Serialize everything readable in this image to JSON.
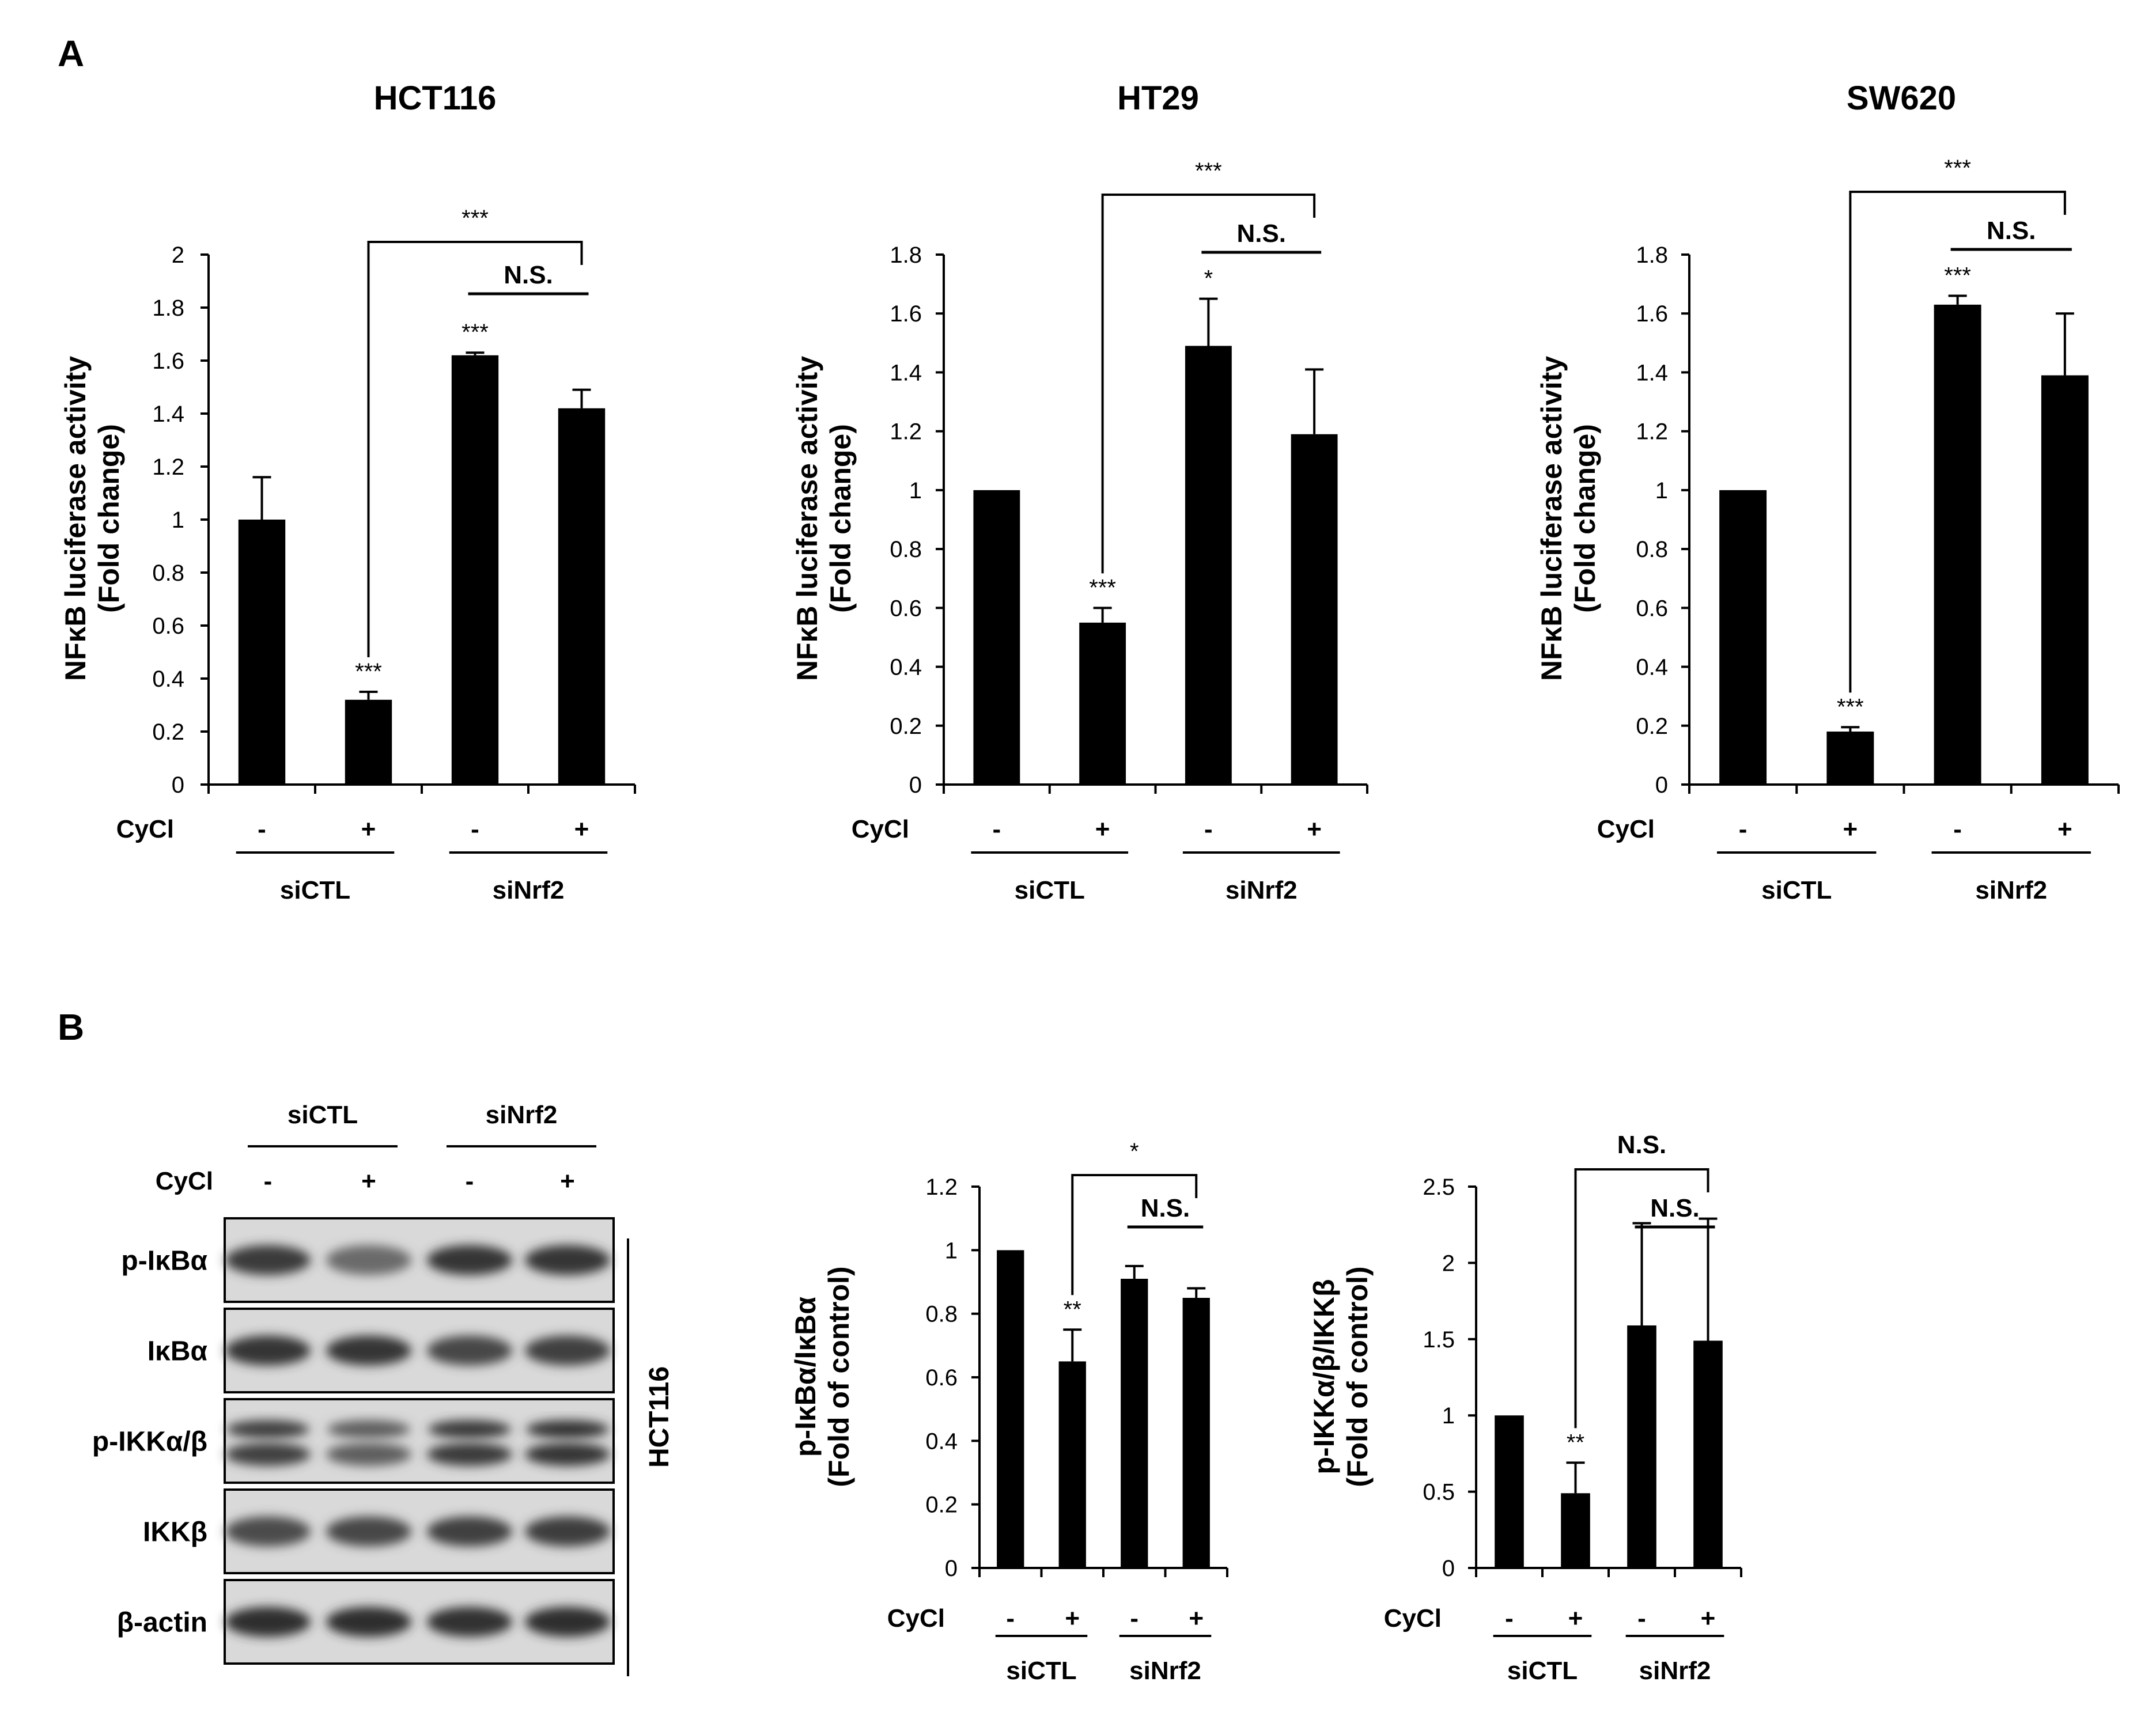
{
  "figure": {
    "panel_a_letter": "A",
    "panel_b_letter": "B"
  },
  "chart_data": [
    {
      "type": "bar",
      "title": "HCT116",
      "ylabel_line1": "NFκB luciferase activity",
      "ylabel_line2": "(Fold change)",
      "condition_label": "CyCl",
      "categories": [
        "-",
        "+",
        "-",
        "+"
      ],
      "groups": [
        "siCTL",
        "siNrf2"
      ],
      "values": [
        1.0,
        0.32,
        1.62,
        1.42
      ],
      "errors": [
        0.16,
        0.03,
        0.01,
        0.07
      ],
      "yticks": [
        "0",
        "0.2",
        "0.4",
        "0.6",
        "0.8",
        "1",
        "1.2",
        "1.4",
        "1.6",
        "1.8",
        "2"
      ],
      "ylim": [
        0,
        2
      ],
      "bar_stars": [
        "",
        "***",
        "***",
        ""
      ],
      "brackets": [
        {
          "from": 1,
          "to": 3,
          "label": "***",
          "style": "bracket"
        },
        {
          "from": 2,
          "to": 3,
          "label": "N.S.",
          "style": "line"
        }
      ]
    },
    {
      "type": "bar",
      "title": "HT29",
      "ylabel_line1": "NFκB luciferase activity",
      "ylabel_line2": "(Fold change)",
      "condition_label": "CyCl",
      "categories": [
        "-",
        "+",
        "-",
        "+"
      ],
      "groups": [
        "siCTL",
        "siNrf2"
      ],
      "values": [
        1.0,
        0.55,
        1.49,
        1.19
      ],
      "errors": [
        0,
        0.05,
        0.16,
        0.22
      ],
      "yticks": [
        "0",
        "0.2",
        "0.4",
        "0.6",
        "0.8",
        "1",
        "1.2",
        "1.4",
        "1.6",
        "1.8"
      ],
      "ylim": [
        0,
        1.8
      ],
      "bar_stars": [
        "",
        "***",
        "*",
        ""
      ],
      "brackets": [
        {
          "from": 1,
          "to": 3,
          "label": "***",
          "style": "bracket"
        },
        {
          "from": 2,
          "to": 3,
          "label": "N.S.",
          "style": "line"
        }
      ]
    },
    {
      "type": "bar",
      "title": "SW620",
      "ylabel_line1": "NFκB luciferase activity",
      "ylabel_line2": "(Fold change)",
      "condition_label": "CyCl",
      "categories": [
        "-",
        "+",
        "-",
        "+"
      ],
      "groups": [
        "siCTL",
        "siNrf2"
      ],
      "values": [
        1.0,
        0.18,
        1.63,
        1.39
      ],
      "errors": [
        0,
        0.015,
        0.03,
        0.21
      ],
      "yticks": [
        "0",
        "0.2",
        "0.4",
        "0.6",
        "0.8",
        "1",
        "1.2",
        "1.4",
        "1.6",
        "1.8"
      ],
      "ylim": [
        0,
        1.8
      ],
      "bar_stars": [
        "",
        "***",
        "***",
        ""
      ],
      "brackets": [
        {
          "from": 1,
          "to": 3,
          "label": "***",
          "style": "bracket"
        },
        {
          "from": 2,
          "to": 3,
          "label": "N.S.",
          "style": "line"
        }
      ]
    },
    {
      "type": "bar",
      "title": "",
      "ylabel_line1": "p-IκBα/IκBα",
      "ylabel_line2": "(Fold of control)",
      "condition_label": "CyCl",
      "categories": [
        "-",
        "+",
        "-",
        "+"
      ],
      "groups": [
        "siCTL",
        "siNrf2"
      ],
      "values": [
        1.0,
        0.65,
        0.91,
        0.85
      ],
      "errors": [
        0,
        0.1,
        0.04,
        0.03
      ],
      "yticks": [
        "0",
        "0.2",
        "0.4",
        "0.6",
        "0.8",
        "1",
        "1.2"
      ],
      "ylim": [
        0,
        1.2
      ],
      "bar_stars": [
        "",
        "**",
        "",
        ""
      ],
      "brackets": [
        {
          "from": 1,
          "to": 3,
          "label": "*",
          "style": "bracket"
        },
        {
          "from": 2,
          "to": 3,
          "label": "N.S.",
          "style": "line"
        }
      ]
    },
    {
      "type": "bar",
      "title": "",
      "ylabel_line1": "p-IKKα/β/IKKβ",
      "ylabel_line2": "(Fold of control)",
      "condition_label": "CyCl",
      "categories": [
        "-",
        "+",
        "-",
        "+"
      ],
      "groups": [
        "siCTL",
        "siNrf2"
      ],
      "values": [
        1.0,
        0.49,
        1.59,
        1.49
      ],
      "errors": [
        0,
        0.2,
        0.67,
        0.8
      ],
      "yticks": [
        "0",
        "0.5",
        "1",
        "1.5",
        "2",
        "2.5"
      ],
      "ylim": [
        0,
        2.5
      ],
      "bar_stars": [
        "",
        "**",
        "",
        ""
      ],
      "brackets": [
        {
          "from": 1,
          "to": 3,
          "label": "N.S.",
          "style": "bracket"
        },
        {
          "from": 2,
          "to": 3,
          "label": "N.S.",
          "style": "line"
        }
      ]
    }
  ],
  "blot": {
    "groups": [
      "siCTL",
      "siNrf2"
    ],
    "condition_label": "CyCl",
    "lanes": [
      "-",
      "+",
      "-",
      "+"
    ],
    "rows": [
      "p-IκBα",
      "IκBα",
      "p-IKKα/β",
      "IKKβ",
      "β-actin"
    ],
    "cell_line": "HCT116",
    "band_intensity": [
      [
        0.85,
        0.45,
        0.9,
        0.9
      ],
      [
        0.9,
        0.88,
        0.75,
        0.8
      ],
      [
        0.8,
        0.55,
        0.85,
        0.9
      ],
      [
        0.7,
        0.75,
        0.8,
        0.82
      ],
      [
        0.95,
        0.95,
        0.93,
        0.95
      ]
    ],
    "double_band_rows": [
      2
    ]
  }
}
